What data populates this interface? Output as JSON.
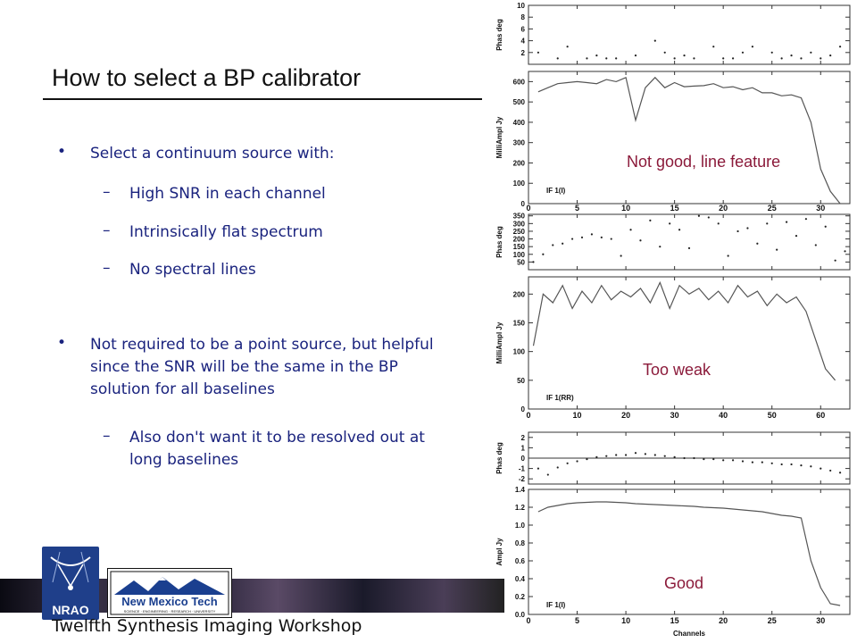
{
  "slide": {
    "title": "How to select a BP calibrator",
    "bullets": [
      {
        "text": "Select a continuum source with:",
        "subs": [
          "High SNR in each channel",
          "Intrinsically flat spectrum",
          "No spectral lines"
        ]
      },
      {
        "text": "Not required to be a point source, but helpful since the SNR will be the same in the BP solution for all baselines",
        "subs": [
          "Also don't want it to be resolved out at long baselines"
        ]
      }
    ],
    "bullet_glyph": "•",
    "dash_glyph": "–",
    "footer": "Twelfth Synthesis Imaging Workshop",
    "logos": {
      "nrao": "NRAO",
      "nmt": "New Mexico Tech",
      "nmt_sub": "SCIENCE · ENGINEERING · RESEARCH · UNIVERSITY"
    }
  },
  "chart_data": [
    {
      "type": "line",
      "annotation": "Not good, line feature",
      "annotation_color": "#8b1a3a",
      "if_label": "IF 1(I)",
      "xlabel": "",
      "xlim": [
        0,
        33
      ],
      "xticks": [
        0,
        5,
        10,
        15,
        20,
        25,
        30
      ],
      "phase": {
        "ylabel": "Phas deg",
        "ylim": [
          0,
          10
        ],
        "yticks": [
          2,
          4,
          6,
          8,
          10
        ],
        "x": [
          1,
          3,
          4,
          6,
          7,
          8,
          9,
          11,
          13,
          14,
          15,
          16,
          17,
          19,
          20,
          21,
          22,
          23,
          25,
          26,
          27,
          28,
          29,
          30,
          31,
          32
        ],
        "values": [
          2,
          1,
          3,
          1,
          1.5,
          1,
          1,
          1.5,
          4,
          2,
          1,
          1.5,
          1,
          3,
          1,
          1,
          2,
          3,
          2,
          1,
          1.5,
          1,
          2,
          1,
          1.5,
          3
        ]
      },
      "amp": {
        "ylabel": "MilliAmpl Jy",
        "ylim": [
          0,
          650
        ],
        "yticks": [
          0,
          100,
          200,
          300,
          400,
          500,
          600
        ],
        "x": [
          1,
          2,
          3,
          4,
          5,
          6,
          7,
          8,
          9,
          10,
          11,
          12,
          13,
          14,
          15,
          16,
          17,
          18,
          19,
          20,
          21,
          22,
          23,
          24,
          25,
          26,
          27,
          28,
          29,
          30,
          31,
          32
        ],
        "values": [
          550,
          570,
          590,
          595,
          600,
          595,
          590,
          610,
          600,
          620,
          410,
          570,
          620,
          570,
          595,
          575,
          578,
          580,
          590,
          570,
          575,
          560,
          570,
          545,
          545,
          530,
          535,
          520,
          400,
          170,
          60,
          0
        ]
      }
    },
    {
      "type": "line",
      "annotation": "Too weak",
      "annotation_color": "#8b1a3a",
      "if_label": "IF 1(RR)",
      "xlabel": "",
      "xlim": [
        0,
        66
      ],
      "xticks": [
        0,
        10,
        20,
        30,
        40,
        50,
        60
      ],
      "phase": {
        "ylabel": "Phas deg",
        "ylim": [
          0,
          360
        ],
        "yticks": [
          50,
          100,
          150,
          200,
          250,
          300,
          350
        ],
        "x": [
          1,
          3,
          5,
          7,
          9,
          11,
          13,
          15,
          17,
          19,
          21,
          23,
          25,
          27,
          29,
          31,
          33,
          35,
          37,
          39,
          41,
          43,
          45,
          47,
          49,
          51,
          53,
          55,
          57,
          59,
          61,
          63,
          65
        ],
        "values": [
          50,
          100,
          160,
          170,
          200,
          210,
          230,
          210,
          200,
          90,
          260,
          190,
          320,
          150,
          300,
          260,
          140,
          350,
          340,
          300,
          90,
          250,
          270,
          170,
          300,
          130,
          310,
          220,
          330,
          160,
          280,
          60,
          120
        ]
      },
      "amp": {
        "ylabel": "MilliAmpl Jy",
        "ylim": [
          0,
          230
        ],
        "yticks": [
          0,
          50,
          100,
          150,
          200
        ],
        "x": [
          1,
          3,
          5,
          7,
          9,
          11,
          13,
          15,
          17,
          19,
          21,
          23,
          25,
          27,
          29,
          31,
          33,
          35,
          37,
          39,
          41,
          43,
          45,
          47,
          49,
          51,
          53,
          55,
          57,
          59,
          61,
          63
        ],
        "values": [
          110,
          200,
          185,
          215,
          175,
          205,
          185,
          215,
          190,
          205,
          195,
          210,
          185,
          220,
          175,
          215,
          200,
          210,
          190,
          205,
          185,
          215,
          195,
          205,
          180,
          200,
          185,
          195,
          170,
          120,
          70,
          50
        ]
      }
    },
    {
      "type": "line",
      "annotation": "Good",
      "annotation_color": "#8b1a3a",
      "if_label": "IF 1(I)",
      "xlabel": "Channels",
      "xlim": [
        0,
        33
      ],
      "xticks": [
        0,
        5,
        10,
        15,
        20,
        25,
        30
      ],
      "phase": {
        "ylabel": "Phas deg",
        "ylim": [
          -2.5,
          2.5
        ],
        "yticks": [
          -2,
          -1,
          0,
          1,
          2
        ],
        "x": [
          1,
          2,
          3,
          4,
          5,
          6,
          7,
          8,
          9,
          10,
          11,
          12,
          13,
          14,
          15,
          16,
          17,
          18,
          19,
          20,
          21,
          22,
          23,
          24,
          25,
          26,
          27,
          28,
          29,
          30,
          31,
          32
        ],
        "values": [
          -1,
          -1.6,
          -0.9,
          -0.5,
          -0.3,
          -0.1,
          0.1,
          0.2,
          0.3,
          0.3,
          0.5,
          0.4,
          0.3,
          0.2,
          0.1,
          0,
          0,
          -0.1,
          -0.1,
          -0.2,
          -0.2,
          -0.3,
          -0.4,
          -0.4,
          -0.5,
          -0.6,
          -0.6,
          -0.7,
          -0.8,
          -1,
          -1.2,
          -1.4
        ]
      },
      "amp": {
        "ylabel": "Ampl Jy",
        "ylim": [
          0,
          1.4
        ],
        "yticks": [
          0,
          0.2,
          0.4,
          0.6,
          0.8,
          1.0,
          1.2,
          1.4
        ],
        "x": [
          1,
          2,
          3,
          4,
          5,
          6,
          7,
          8,
          9,
          10,
          11,
          12,
          13,
          14,
          15,
          16,
          17,
          18,
          19,
          20,
          21,
          22,
          23,
          24,
          25,
          26,
          27,
          28,
          29,
          30,
          31,
          32
        ],
        "values": [
          1.15,
          1.2,
          1.22,
          1.24,
          1.25,
          1.255,
          1.26,
          1.26,
          1.255,
          1.25,
          1.24,
          1.235,
          1.23,
          1.225,
          1.22,
          1.215,
          1.21,
          1.2,
          1.195,
          1.19,
          1.18,
          1.17,
          1.16,
          1.15,
          1.13,
          1.11,
          1.1,
          1.08,
          0.6,
          0.3,
          0.12,
          0.1
        ]
      }
    }
  ]
}
